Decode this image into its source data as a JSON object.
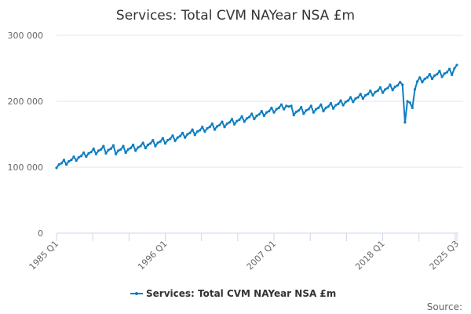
{
  "chart_data": {
    "type": "line",
    "title": "Services: Total CVM NAYear NSA £m",
    "xlabel": "",
    "ylabel": "",
    "start_period": "1985 Q1",
    "end_period": "2025 Q3",
    "x_tick_labels": [
      "1985 Q1",
      "1996 Q1",
      "2007 Q1",
      "2018 Q1",
      "2025 Q3"
    ],
    "y_tick_labels": [
      "0",
      "100 000",
      "200 000",
      "300 000"
    ],
    "y_ticks": [
      0,
      100000,
      200000,
      300000
    ],
    "ylim": [
      0,
      300000
    ],
    "grid": true,
    "legend_position": "bottom",
    "color": "#0f7dc2",
    "source_label": "Source:",
    "series": [
      {
        "name": "Services: Total CVM NAYear NSA £m",
        "values": [
          99000,
          104000,
          106000,
          111000,
          104000,
          109000,
          111000,
          116000,
          110000,
          115000,
          117000,
          122000,
          116000,
          121000,
          123000,
          128000,
          120000,
          125000,
          127000,
          132000,
          121000,
          126000,
          128000,
          133000,
          120000,
          125000,
          127000,
          132000,
          122000,
          127000,
          129000,
          134000,
          125000,
          130000,
          132000,
          137000,
          129000,
          134000,
          136000,
          141000,
          132000,
          137000,
          139000,
          144000,
          136000,
          141000,
          143000,
          148000,
          140000,
          145000,
          147000,
          152000,
          145000,
          150000,
          152000,
          157000,
          149000,
          154000,
          156000,
          161000,
          154000,
          159000,
          161000,
          166000,
          157000,
          162000,
          164000,
          169000,
          161000,
          166000,
          168000,
          173000,
          165000,
          170000,
          172000,
          177000,
          169000,
          174000,
          176000,
          181000,
          173000,
          178000,
          180000,
          185000,
          178000,
          183000,
          185000,
          190000,
          183000,
          188000,
          190000,
          195000,
          188000,
          193000,
          192000,
          193000,
          179000,
          184000,
          186000,
          191000,
          181000,
          186000,
          188000,
          193000,
          183000,
          188000,
          190000,
          195000,
          185000,
          190000,
          192000,
          197000,
          189000,
          194000,
          196000,
          201000,
          194000,
          199000,
          201000,
          206000,
          199000,
          204000,
          206000,
          211000,
          204000,
          209000,
          211000,
          216000,
          209000,
          214000,
          216000,
          221000,
          213000,
          218000,
          220000,
          225000,
          217000,
          222000,
          224000,
          229000,
          225000,
          168000,
          200000,
          198000,
          190000,
          218000,
          230000,
          236000,
          229000,
          234000,
          236000,
          241000,
          234000,
          239000,
          241000,
          246000,
          237000,
          242000,
          244000,
          249000,
          240000,
          250000,
          255000
        ]
      }
    ]
  }
}
